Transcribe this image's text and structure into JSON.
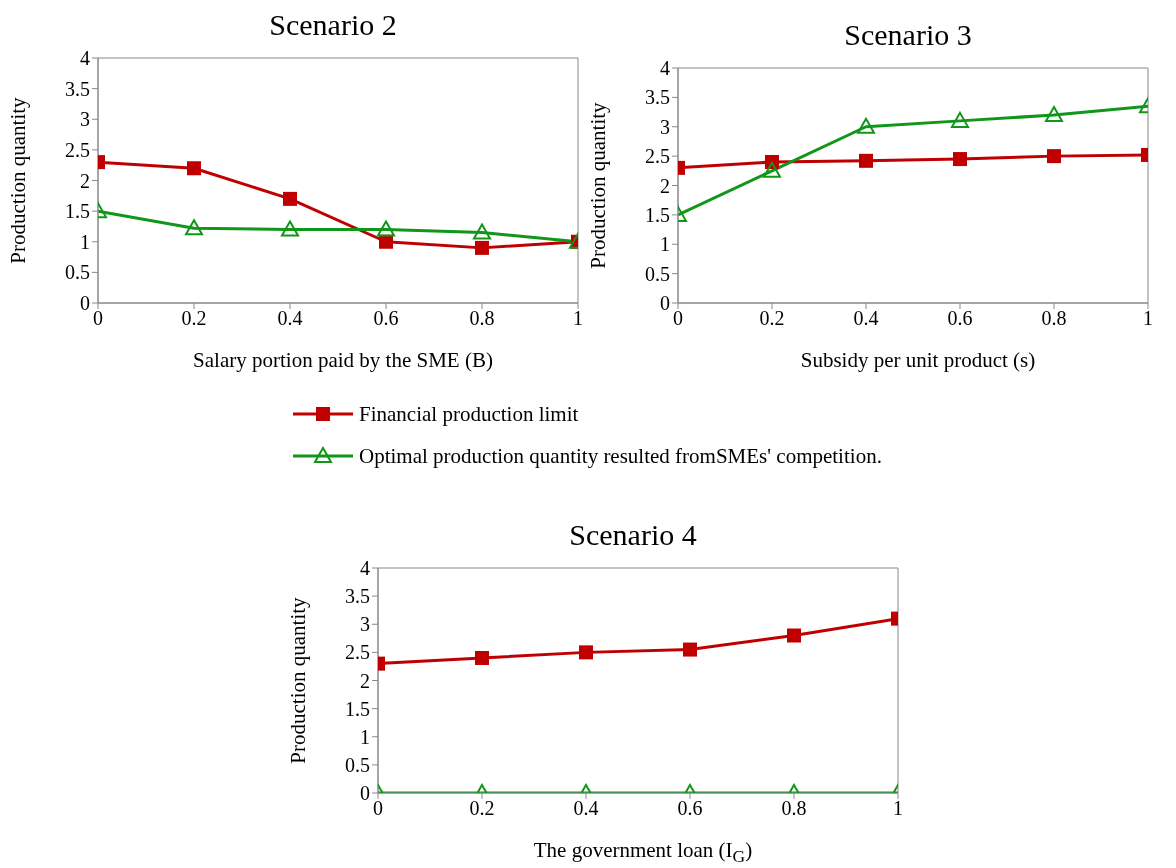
{
  "chart_data": [
    {
      "type": "line",
      "title": "Scenario 2",
      "xlabel": "Salary portion paid by the SME (B)",
      "ylabel": "Production quantity",
      "x": [
        0,
        0.2,
        0.4,
        0.6,
        0.8,
        1
      ],
      "xlim": [
        0,
        1
      ],
      "xticks": [
        0,
        0.2,
        0.4,
        0.6,
        0.8,
        1
      ],
      "ylim": [
        0,
        4
      ],
      "yticks": [
        0,
        0.5,
        1,
        1.5,
        2,
        2.5,
        3,
        3.5,
        4
      ],
      "grid": false,
      "legend": "bottom",
      "series": [
        {
          "name": "Financial production limit",
          "color": "#c00000",
          "marker": "square",
          "values": [
            2.3,
            2.2,
            1.7,
            1.0,
            0.9,
            1.0
          ]
        },
        {
          "name": "Optimal production quantity resulted fromSMEs' competition.",
          "color": "#109618",
          "marker": "triangle",
          "values": [
            1.5,
            1.22,
            1.2,
            1.2,
            1.15,
            1.0
          ]
        }
      ]
    },
    {
      "type": "line",
      "title": "Scenario 3",
      "xlabel": "Subsidy per unit product (s)",
      "ylabel": "Production quantity",
      "x": [
        0,
        0.2,
        0.4,
        0.6,
        0.8,
        1
      ],
      "xlim": [
        0,
        1
      ],
      "xticks": [
        0,
        0.2,
        0.4,
        0.6,
        0.8,
        1
      ],
      "ylim": [
        0,
        4
      ],
      "yticks": [
        0,
        0.5,
        1,
        1.5,
        2,
        2.5,
        3,
        3.5,
        4
      ],
      "grid": false,
      "series": [
        {
          "color": "#c00000",
          "marker": "square",
          "values": [
            2.3,
            2.4,
            2.42,
            2.45,
            2.5,
            2.52
          ]
        },
        {
          "color": "#109618",
          "marker": "triangle",
          "values": [
            1.5,
            2.25,
            3.0,
            3.1,
            3.2,
            3.35
          ]
        }
      ]
    },
    {
      "type": "line",
      "title": "Scenario 4",
      "xlabel": "The government loan (I$_{G}$)",
      "ylabel": "Production quantity",
      "x": [
        0,
        0.2,
        0.4,
        0.6,
        0.8,
        1
      ],
      "xlim": [
        0,
        1
      ],
      "xticks": [
        0,
        0.2,
        0.4,
        0.6,
        0.8,
        1
      ],
      "ylim": [
        0,
        4
      ],
      "yticks": [
        0,
        0.5,
        1,
        1.5,
        2,
        2.5,
        3,
        3.5,
        4
      ],
      "grid": false,
      "series": [
        {
          "color": "#c00000",
          "marker": "square",
          "values": [
            2.3,
            2.4,
            2.5,
            2.55,
            2.8,
            3.1
          ]
        },
        {
          "color": "#109618",
          "marker": "triangle",
          "values": [
            0,
            0,
            0,
            0,
            0,
            0
          ]
        }
      ]
    }
  ]
}
